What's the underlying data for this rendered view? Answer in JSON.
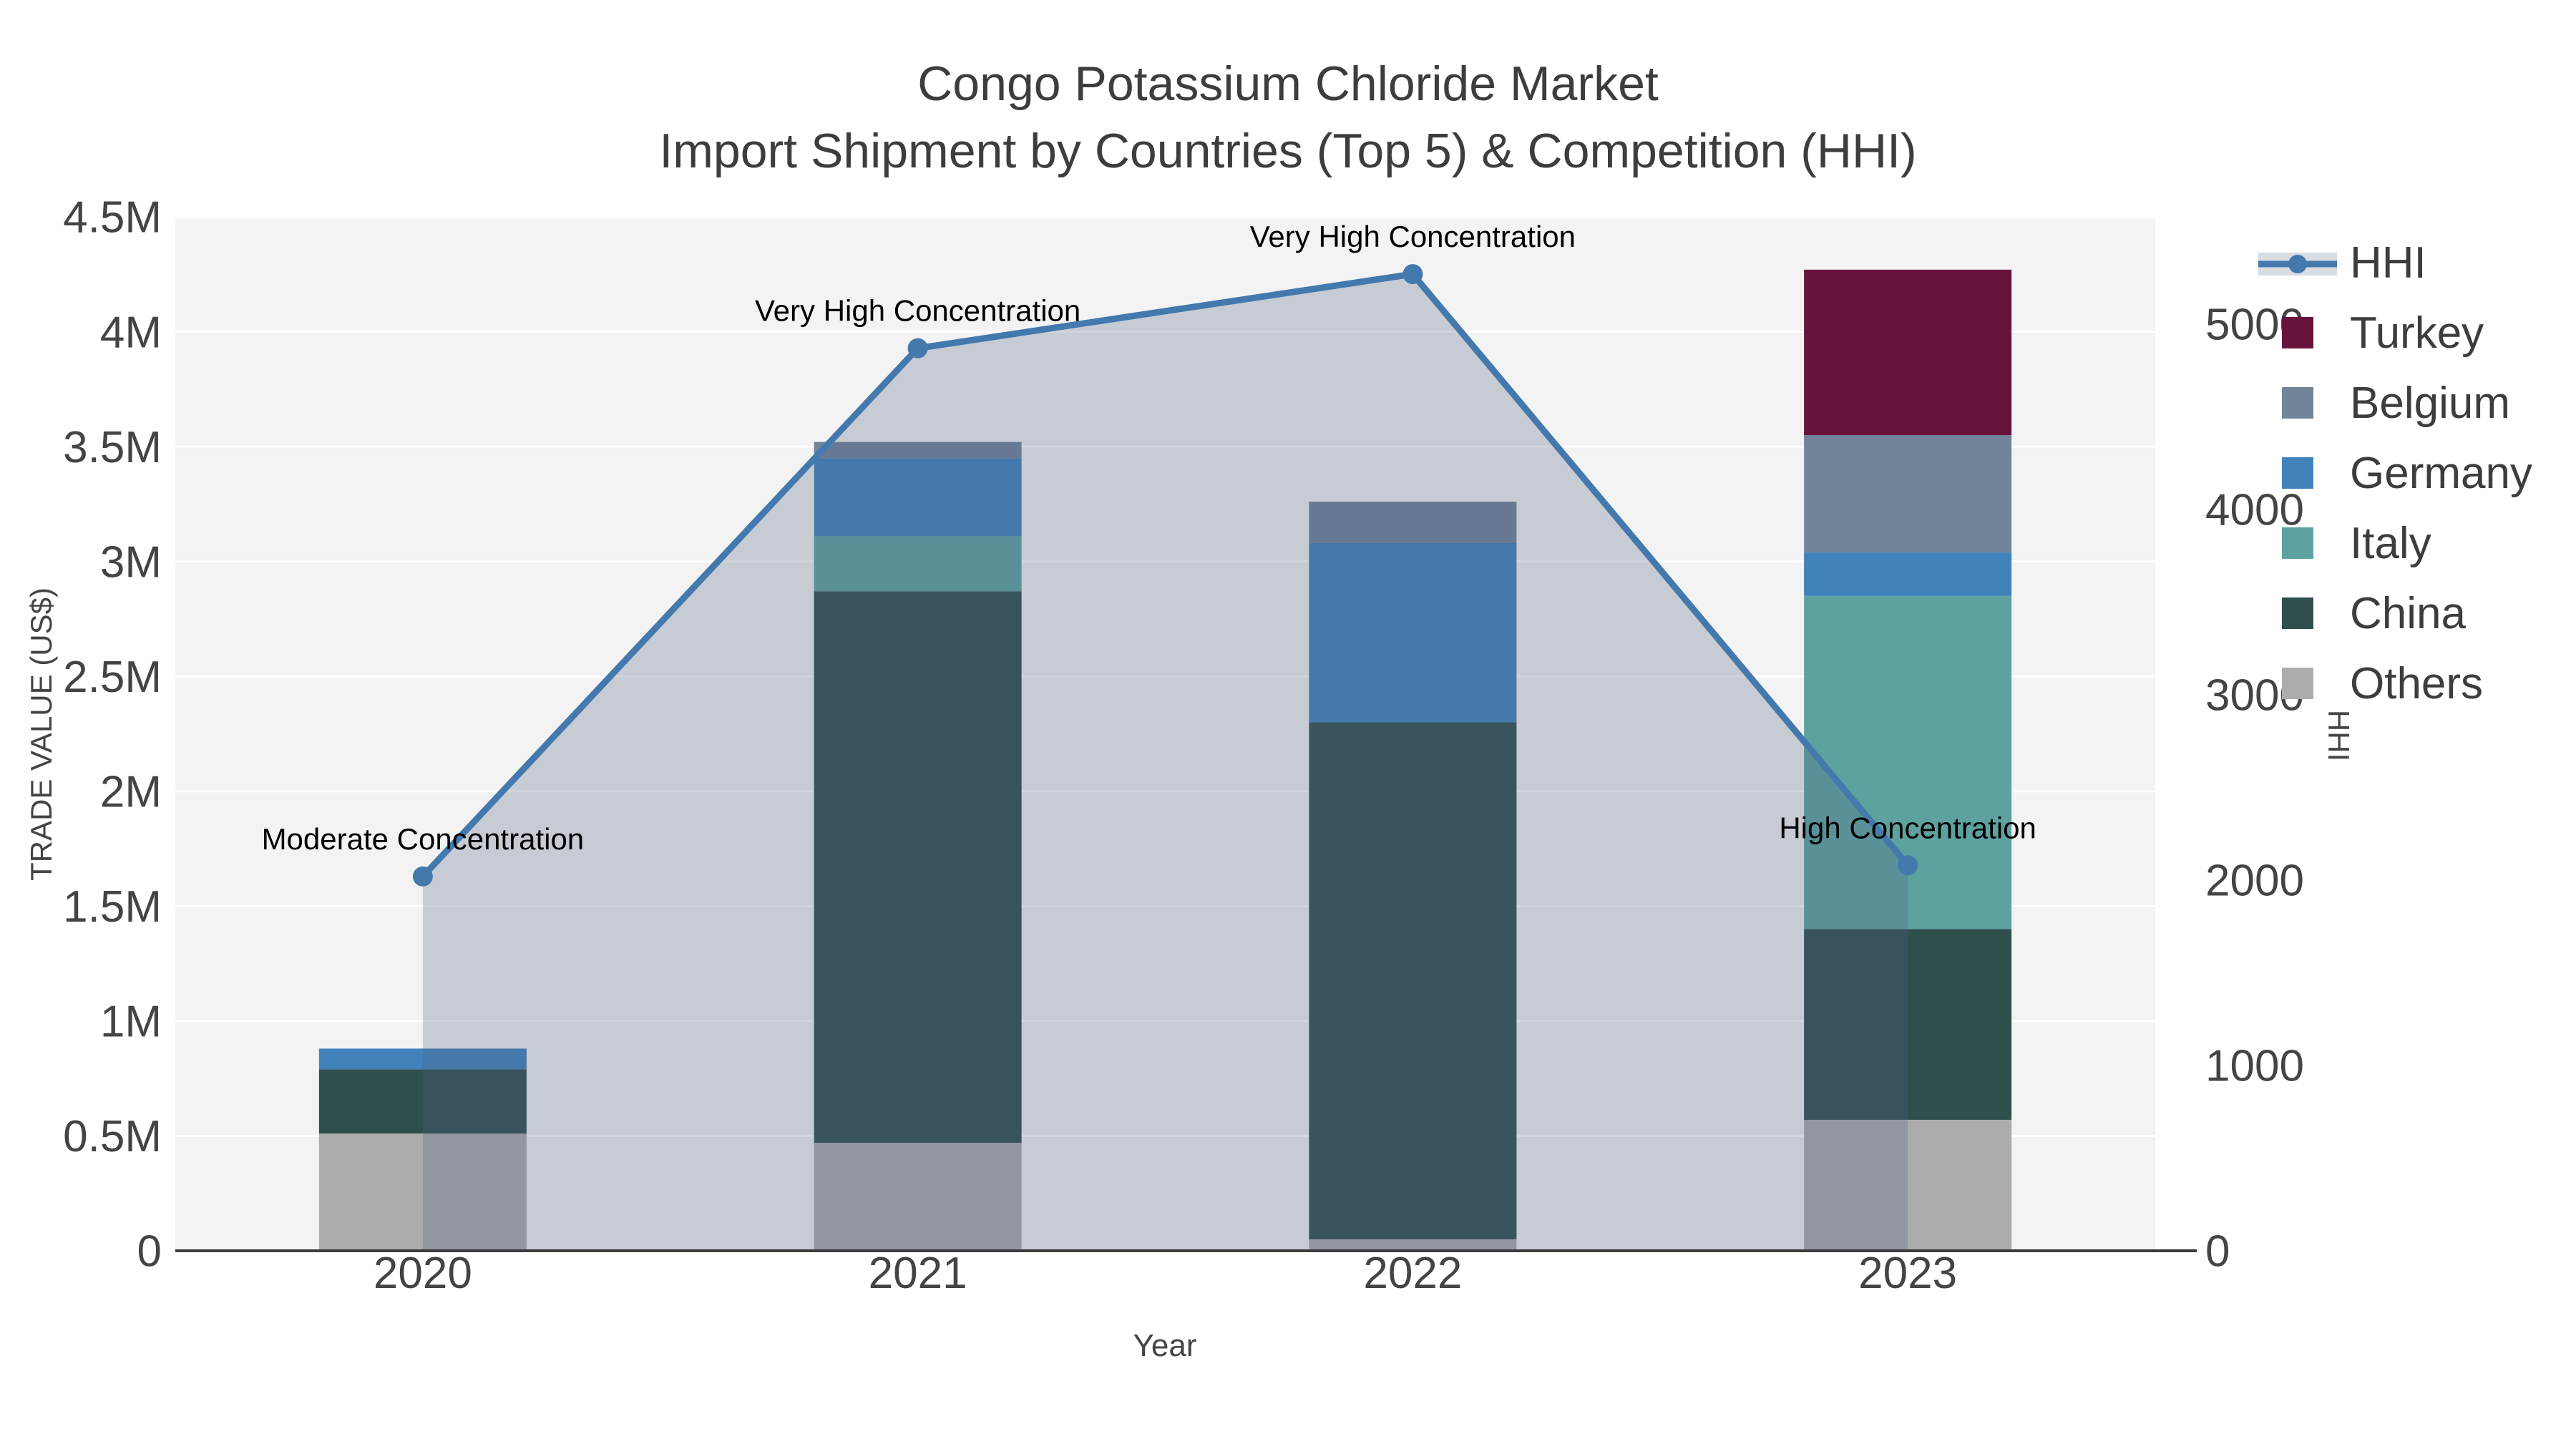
{
  "title": {
    "line1": "Congo Potassium Chloride Market",
    "line2": "Import Shipment by Countries (Top 5) & Competition (HHI)"
  },
  "chart_data": {
    "type": "combo: stacked-bar (left axis) + line-with-area (right axis)",
    "categories": [
      "2020",
      "2021",
      "2022",
      "2023"
    ],
    "value_unit": "million US$",
    "series": [
      {
        "name": "Others",
        "color": "#ACACAC",
        "values": [
          0.51,
          0.47,
          0.05,
          0.57
        ]
      },
      {
        "name": "China",
        "color": "#2F4F4D",
        "values": [
          0.28,
          2.4,
          2.25,
          0.83
        ]
      },
      {
        "name": "Italy",
        "color": "#5EA2A0",
        "values": [
          0.0,
          0.24,
          0.0,
          1.45
        ]
      },
      {
        "name": "Germany",
        "color": "#4182BB",
        "values": [
          0.09,
          0.34,
          0.78,
          0.19
        ]
      },
      {
        "name": "Belgium",
        "color": "#71849A",
        "values": [
          0.0,
          0.07,
          0.18,
          0.51
        ]
      },
      {
        "name": "Turkey",
        "color": "#68143A",
        "values": [
          0.0,
          0.0,
          0.0,
          0.72
        ]
      }
    ],
    "hhi_line": {
      "name": "HHI",
      "values": [
        2020,
        4870,
        5270,
        2080
      ],
      "color": "#4379AD",
      "area_fill": "rgba(80,96,128,0.27)",
      "axis": "right"
    },
    "annotations": [
      {
        "year": "2020",
        "text": "Moderate Concentration"
      },
      {
        "year": "2021",
        "text": "Very High Concentration"
      },
      {
        "year": "2022",
        "text": "Very High Concentration"
      },
      {
        "year": "2023",
        "text": "High Concentration"
      }
    ],
    "axes": {
      "left": {
        "title": "TRADE VALUE (US$)",
        "tick_labels": [
          "0",
          "0.5M",
          "1M",
          "1.5M",
          "2M",
          "2.5M",
          "3M",
          "3.5M",
          "4M",
          "4.5M"
        ],
        "tick_values": [
          0,
          0.5,
          1,
          1.5,
          2,
          2.5,
          3,
          3.5,
          4,
          4.5
        ],
        "range": [
          0,
          4.5
        ]
      },
      "right": {
        "title": "HHI",
        "tick_labels": [
          "0",
          "1000",
          "2000",
          "3000",
          "4000",
          "5000"
        ],
        "tick_values": [
          0,
          1000,
          2000,
          3000,
          4000,
          5000
        ],
        "range": [
          0,
          5580
        ]
      },
      "x": {
        "title": "Year"
      }
    },
    "legend": [
      {
        "label": "HHI",
        "type": "line",
        "color": "#4379AD"
      },
      {
        "label": "Turkey",
        "type": "swatch",
        "color": "#68143A"
      },
      {
        "label": "Belgium",
        "type": "swatch",
        "color": "#71849A"
      },
      {
        "label": "Germany",
        "type": "swatch",
        "color": "#4182BB"
      },
      {
        "label": "Italy",
        "type": "swatch",
        "color": "#5EA2A0"
      },
      {
        "label": "China",
        "type": "swatch",
        "color": "#2F4F4D"
      },
      {
        "label": "Others",
        "type": "swatch",
        "color": "#ACACAC"
      }
    ],
    "grid": true,
    "legend_position": "right"
  },
  "colors": {
    "plot_bg": "#F3F3F3",
    "gridline": "#FFFFFF",
    "axis_line": "#3C3C3C",
    "tick_text": "#444444",
    "title_text": "#3D3D3D",
    "annotation_text": "#000000"
  }
}
